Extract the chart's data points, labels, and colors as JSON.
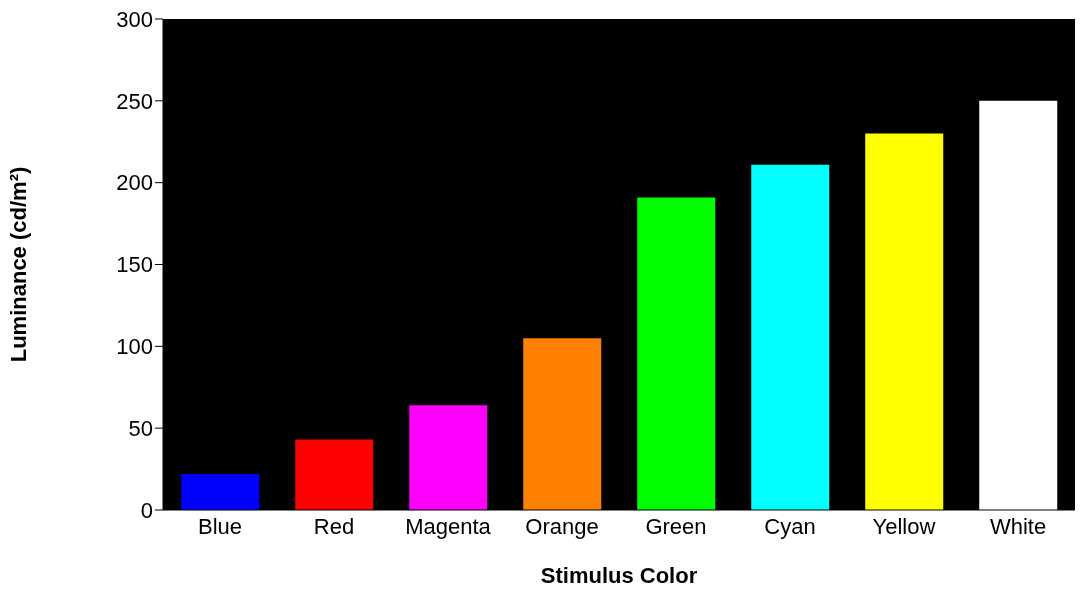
{
  "chart_data": {
    "type": "bar",
    "xlabel": "Stimulus Color",
    "ylabel": "Luminance (cd/m²)",
    "categories": [
      "Blue",
      "Red",
      "Magenta",
      "Orange",
      "Green",
      "Cyan",
      "Yellow",
      "White"
    ],
    "values": [
      22,
      43,
      64,
      105,
      191,
      211,
      230,
      250
    ],
    "colors": [
      "#0000ff",
      "#ff0000",
      "#ff00ff",
      "#ff8000",
      "#00ff00",
      "#00ffff",
      "#ffff00",
      "#ffffff"
    ],
    "ylim": [
      0,
      300
    ],
    "yticks": [
      0,
      50,
      100,
      150,
      200,
      250,
      300
    ],
    "grid": false
  }
}
